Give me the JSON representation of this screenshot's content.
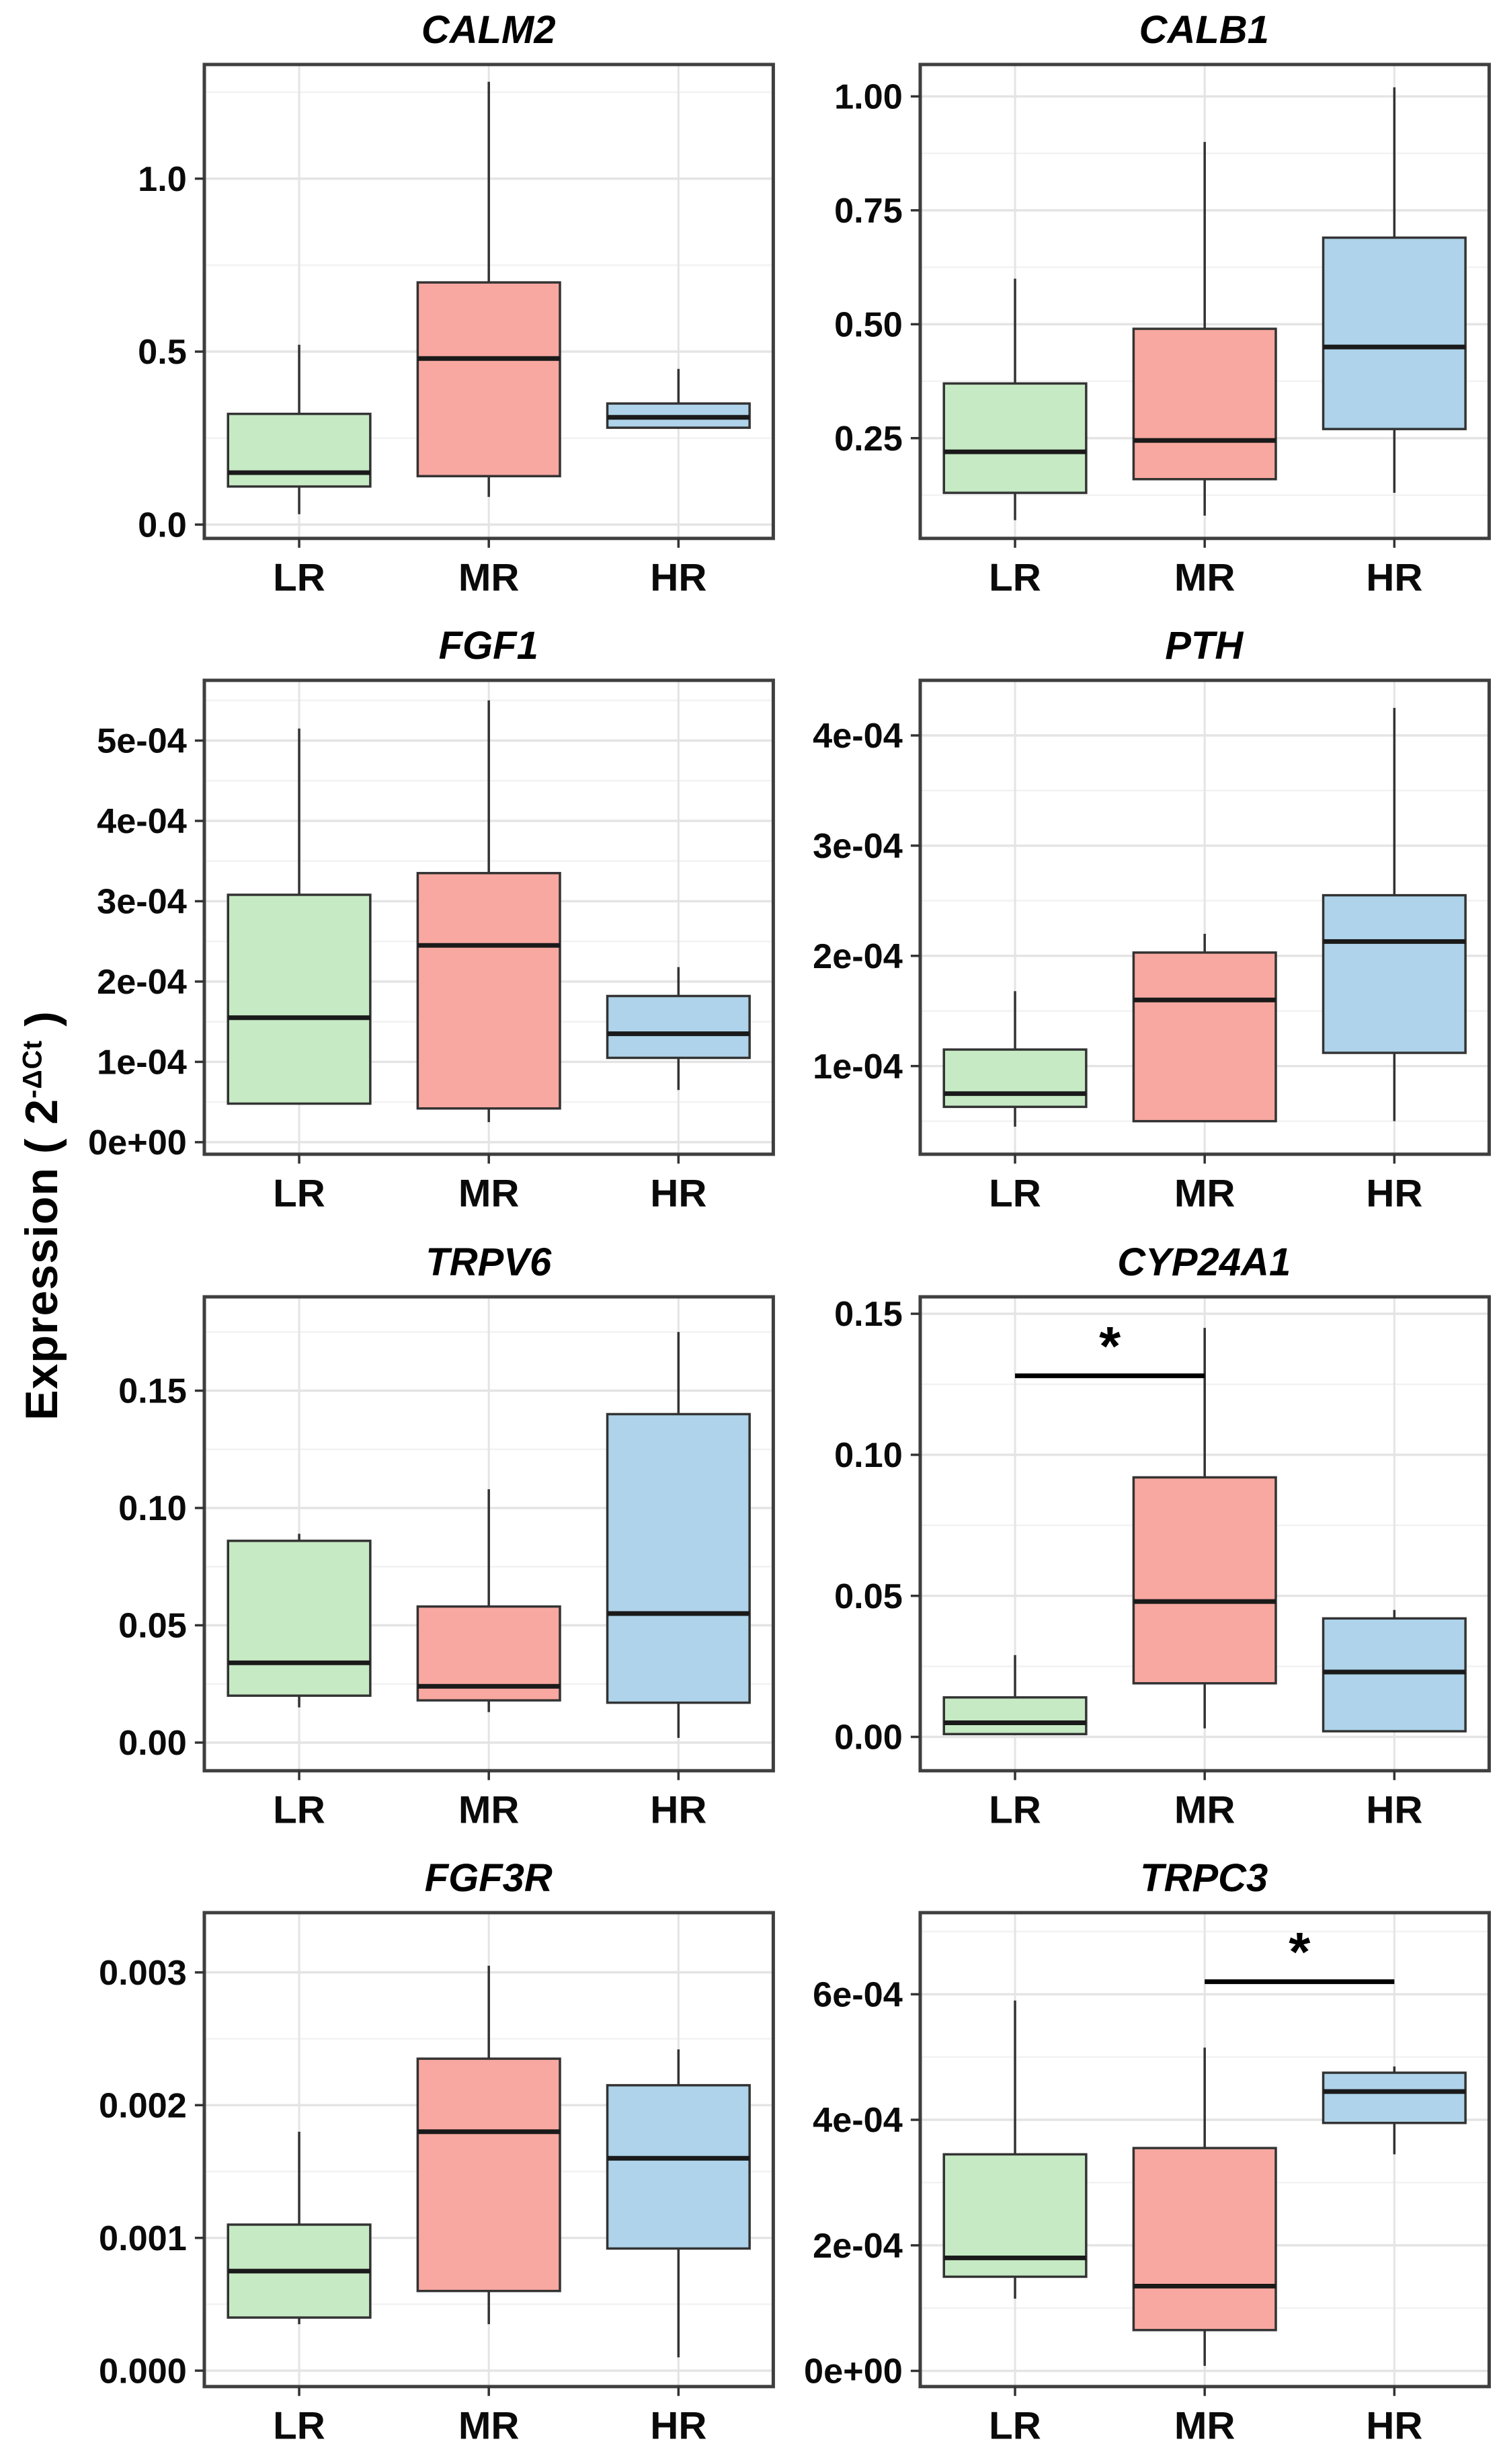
{
  "figure": {
    "ylabel_prefix": "Expression ( 2",
    "ylabel_superscript": "-ΔCt",
    "ylabel_suffix": " )"
  },
  "colors": {
    "LR": "#c6eac4",
    "MR": "#f8a8a0",
    "HR": "#aed3ea",
    "box_border": "#333333",
    "median": "#1a1a1a",
    "whisker": "#333333",
    "panel_border": "#3f3f3f",
    "grid_major": "#e4e4e4",
    "grid_minor": "#f2f2f2",
    "axis_text": "#0a0a0a",
    "tick_mark": "#333333",
    "significance": "#000000"
  },
  "groups": [
    "LR",
    "MR",
    "HR"
  ],
  "chart_data": [
    {
      "type": "box",
      "title": "CALM2",
      "categories": [
        "LR",
        "MR",
        "HR"
      ],
      "ylim": [
        -0.04,
        1.33
      ],
      "ticks": [
        0.0,
        0.5,
        1.0
      ],
      "tick_labels": [
        "0.0",
        "0.5",
        "1.0"
      ],
      "series": [
        {
          "name": "LR",
          "min": 0.03,
          "q1": 0.11,
          "median": 0.15,
          "q3": 0.32,
          "max": 0.52
        },
        {
          "name": "MR",
          "min": 0.08,
          "q1": 0.14,
          "median": 0.48,
          "q3": 0.7,
          "max": 1.28
        },
        {
          "name": "HR",
          "min": 0.28,
          "q1": 0.28,
          "median": 0.31,
          "q3": 0.35,
          "max": 0.45
        }
      ],
      "significance": null
    },
    {
      "type": "box",
      "title": "CALB1",
      "categories": [
        "LR",
        "MR",
        "HR"
      ],
      "ylim": [
        0.03,
        1.07
      ],
      "ticks": [
        0.25,
        0.5,
        0.75,
        1.0
      ],
      "tick_labels": [
        "0.25",
        "0.50",
        "0.75",
        "1.00"
      ],
      "series": [
        {
          "name": "LR",
          "min": 0.07,
          "q1": 0.13,
          "median": 0.22,
          "q3": 0.37,
          "max": 0.6
        },
        {
          "name": "MR",
          "min": 0.08,
          "q1": 0.16,
          "median": 0.245,
          "q3": 0.49,
          "max": 0.9
        },
        {
          "name": "HR",
          "min": 0.13,
          "q1": 0.27,
          "median": 0.45,
          "q3": 0.69,
          "max": 1.02
        }
      ],
      "significance": null
    },
    {
      "type": "box",
      "title": "FGF1",
      "categories": [
        "LR",
        "MR",
        "HR"
      ],
      "ylim": [
        -1.5e-05,
        0.000575
      ],
      "ticks": [
        0,
        0.0001,
        0.0002,
        0.0003,
        0.0004,
        0.0005
      ],
      "tick_labels": [
        "0e+00",
        "1e-04",
        "2e-04",
        "3e-04",
        "4e-04",
        "5e-04"
      ],
      "series": [
        {
          "name": "LR",
          "min": 4.8e-05,
          "q1": 4.8e-05,
          "median": 0.000155,
          "q3": 0.000308,
          "max": 0.000515
        },
        {
          "name": "MR",
          "min": 2.5e-05,
          "q1": 4.2e-05,
          "median": 0.000245,
          "q3": 0.000335,
          "max": 0.00055
        },
        {
          "name": "HR",
          "min": 6.5e-05,
          "q1": 0.000105,
          "median": 0.000135,
          "q3": 0.000182,
          "max": 0.000218
        }
      ],
      "significance": null
    },
    {
      "type": "box",
      "title": "PTH",
      "categories": [
        "LR",
        "MR",
        "HR"
      ],
      "ylim": [
        2e-05,
        0.00045
      ],
      "ticks": [
        0.0001,
        0.0002,
        0.0003,
        0.0004
      ],
      "tick_labels": [
        "1e-04",
        "2e-04",
        "3e-04",
        "4e-04"
      ],
      "series": [
        {
          "name": "LR",
          "min": 4.5e-05,
          "q1": 6.3e-05,
          "median": 7.5e-05,
          "q3": 0.000115,
          "max": 0.000168
        },
        {
          "name": "MR",
          "min": 5e-05,
          "q1": 5e-05,
          "median": 0.00016,
          "q3": 0.000203,
          "max": 0.00022
        },
        {
          "name": "HR",
          "min": 5e-05,
          "q1": 0.000112,
          "median": 0.000213,
          "q3": 0.000255,
          "max": 0.000425
        }
      ],
      "significance": null
    },
    {
      "type": "box",
      "title": "TRPV6",
      "categories": [
        "LR",
        "MR",
        "HR"
      ],
      "ylim": [
        -0.012,
        0.19
      ],
      "ticks": [
        0.0,
        0.05,
        0.1,
        0.15
      ],
      "tick_labels": [
        "0.00",
        "0.05",
        "0.10",
        "0.15"
      ],
      "series": [
        {
          "name": "LR",
          "min": 0.015,
          "q1": 0.02,
          "median": 0.034,
          "q3": 0.086,
          "max": 0.089
        },
        {
          "name": "MR",
          "min": 0.013,
          "q1": 0.018,
          "median": 0.024,
          "q3": 0.058,
          "max": 0.108
        },
        {
          "name": "HR",
          "min": 0.002,
          "q1": 0.017,
          "median": 0.055,
          "q3": 0.14,
          "max": 0.175
        }
      ],
      "significance": null
    },
    {
      "type": "box",
      "title": "CYP24A1",
      "categories": [
        "LR",
        "MR",
        "HR"
      ],
      "ylim": [
        -0.012,
        0.156
      ],
      "ticks": [
        0.0,
        0.05,
        0.1,
        0.15
      ],
      "tick_labels": [
        "0.00",
        "0.05",
        "0.10",
        "0.15"
      ],
      "series": [
        {
          "name": "LR",
          "min": 0.001,
          "q1": 0.001,
          "median": 0.005,
          "q3": 0.014,
          "max": 0.029
        },
        {
          "name": "MR",
          "min": 0.003,
          "q1": 0.019,
          "median": 0.048,
          "q3": 0.092,
          "max": 0.145
        },
        {
          "name": "HR",
          "min": 0.002,
          "q1": 0.002,
          "median": 0.023,
          "q3": 0.042,
          "max": 0.045
        }
      ],
      "significance": {
        "from": "LR",
        "to": "MR",
        "y": 0.128,
        "label": "*"
      }
    },
    {
      "type": "box",
      "title": "FGF3R",
      "categories": [
        "LR",
        "MR",
        "HR"
      ],
      "ylim": [
        -0.00012,
        0.00345
      ],
      "ticks": [
        0.0,
        0.001,
        0.002,
        0.003
      ],
      "tick_labels": [
        "0.000",
        "0.001",
        "0.002",
        "0.003"
      ],
      "series": [
        {
          "name": "LR",
          "min": 0.00035,
          "q1": 0.0004,
          "median": 0.00075,
          "q3": 0.0011,
          "max": 0.0018
        },
        {
          "name": "MR",
          "min": 0.00035,
          "q1": 0.0006,
          "median": 0.0018,
          "q3": 0.00235,
          "max": 0.00305
        },
        {
          "name": "HR",
          "min": 0.0001,
          "q1": 0.00092,
          "median": 0.0016,
          "q3": 0.00215,
          "max": 0.00242
        }
      ],
      "significance": null
    },
    {
      "type": "box",
      "title": "TRPC3",
      "categories": [
        "LR",
        "MR",
        "HR"
      ],
      "ylim": [
        -2.5e-05,
        0.00073
      ],
      "ticks": [
        0,
        0.0002,
        0.0004,
        0.0006
      ],
      "tick_labels": [
        "0e+00",
        "2e-04",
        "4e-04",
        "6e-04"
      ],
      "series": [
        {
          "name": "LR",
          "min": 0.000115,
          "q1": 0.00015,
          "median": 0.00018,
          "q3": 0.000345,
          "max": 0.00059
        },
        {
          "name": "MR",
          "min": 8e-06,
          "q1": 6.5e-05,
          "median": 0.000135,
          "q3": 0.000355,
          "max": 0.000515
        },
        {
          "name": "HR",
          "min": 0.000345,
          "q1": 0.000395,
          "median": 0.000445,
          "q3": 0.000475,
          "max": 0.000485
        }
      ],
      "significance": {
        "from": "MR",
        "to": "HR",
        "y": 0.00062,
        "label": "*"
      }
    }
  ]
}
